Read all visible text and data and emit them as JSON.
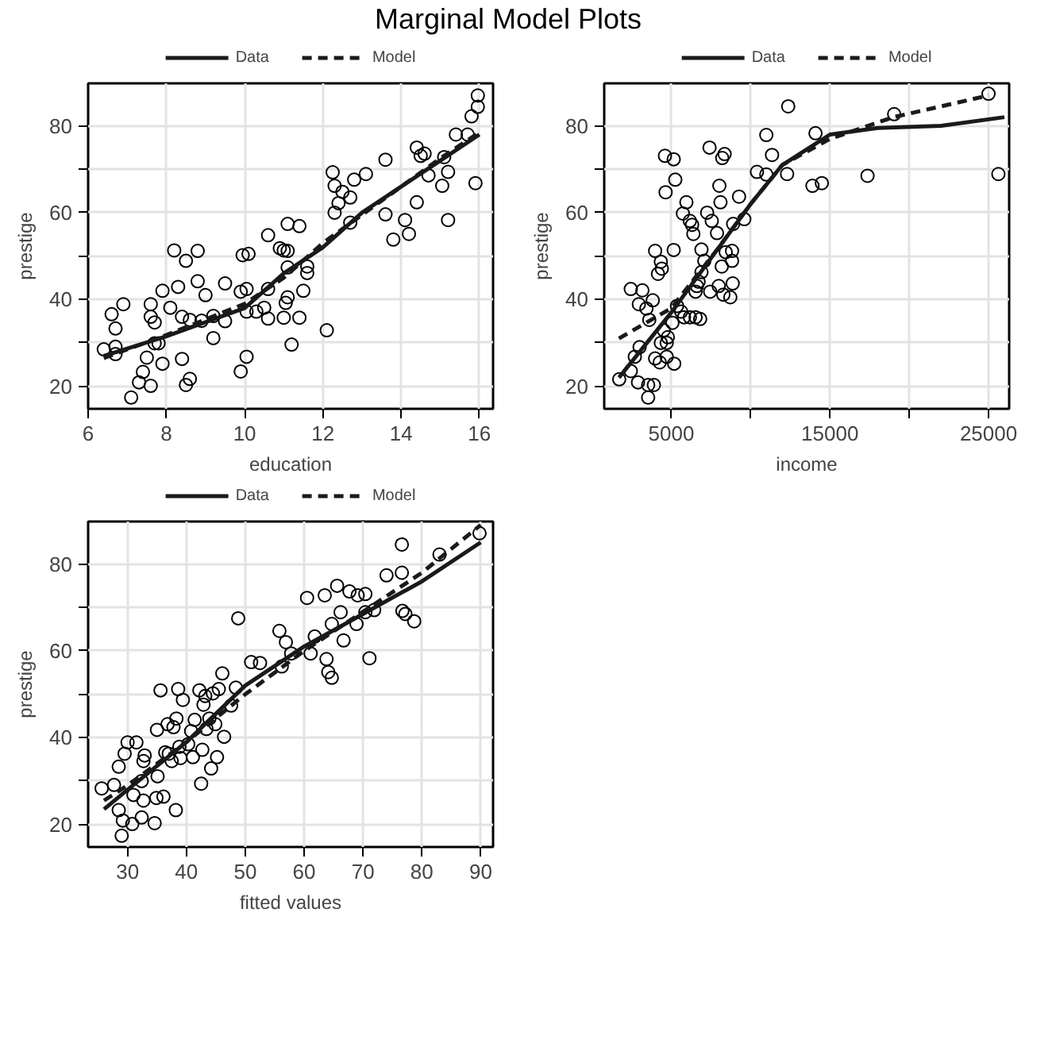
{
  "chart_data": [
    {
      "type": "scatter",
      "title": "Marginal Model Plots",
      "xlabel": "education",
      "ylabel": "prestige",
      "xlim": [
        6,
        16.35
      ],
      "ylim": [
        14.8,
        89.8
      ],
      "xticks": [
        6,
        8,
        10,
        12,
        14,
        16
      ],
      "yticks": [
        20,
        {
          "value": 30,
          "label": null
        },
        40,
        {
          "value": 50,
          "label": null
        },
        60,
        {
          "value": 70,
          "label": null
        },
        80
      ],
      "grid": true,
      "legend": "top",
      "series": [
        {
          "type": "scatter",
          "marker": "circle",
          "color": "#000000",
          "x": [
            6.4,
            6.6,
            6.7,
            6.7,
            6.7,
            6.9,
            7.1,
            7.3,
            7.4,
            7.5,
            7.6,
            7.6,
            7.6,
            7.7,
            7.7,
            7.8,
            7.9,
            7.9,
            8.1,
            8.2,
            8.3,
            8.4,
            8.4,
            8.5,
            8.5,
            8.6,
            8.6,
            8.8,
            8.8,
            8.9,
            9.0,
            9.2,
            9.2,
            9.5,
            9.5,
            9.9,
            9.9,
            9.95,
            10.05,
            10.05,
            10.05,
            10.1,
            10.3,
            10.5,
            10.6,
            10.6,
            10.6,
            10.9,
            11.0,
            11.1,
            11.1,
            11.1,
            11.05,
            11.1,
            11.0,
            11.2,
            11.4,
            11.4,
            11.5,
            11.6,
            11.6,
            12.1,
            12.25,
            12.3,
            12.3,
            12.4,
            12.5,
            12.7,
            12.8,
            12.7,
            13.1,
            13.6,
            13.6,
            13.8,
            14.1,
            14.2,
            14.4,
            14.4,
            14.5,
            14.6,
            14.7,
            15.05,
            15.1,
            15.2,
            15.2,
            15.4,
            15.7,
            15.8,
            15.96,
            15.96,
            15.9
          ],
          "values": [
            28.5,
            36.6,
            33.3,
            29.1,
            27.4,
            38.9,
            17.4,
            20.9,
            23.3,
            26.6,
            20.1,
            38.9,
            36.0,
            34.7,
            29.9,
            29.9,
            25.2,
            42.0,
            38.1,
            51.3,
            42.9,
            26.3,
            36.0,
            48.9,
            20.3,
            21.7,
            35.3,
            51.2,
            44.2,
            35.1,
            41.0,
            31.1,
            36.2,
            43.7,
            35.0,
            41.8,
            23.4,
            50.2,
            26.8,
            42.4,
            37.2,
            50.5,
            37.2,
            38.1,
            54.8,
            42.4,
            35.6,
            51.8,
            51.3,
            57.4,
            47.4,
            51.2,
            39.2,
            40.5,
            35.8,
            29.6,
            56.9,
            35.8,
            42.0,
            47.6,
            46.1,
            32.9,
            69.3,
            66.2,
            60.0,
            62.2,
            64.8,
            63.5,
            67.6,
            57.7,
            68.9,
            72.2,
            59.6,
            53.8,
            58.3,
            55.1,
            75.0,
            62.4,
            73.1,
            73.6,
            68.6,
            66.2,
            72.8,
            69.4,
            58.3,
            78.0,
            78.0,
            82.2,
            87.0,
            84.4,
            66.8
          ]
        },
        {
          "type": "line",
          "name": "Data",
          "line_style": "solid",
          "color": "#1a1a1a",
          "x": [
            6.4,
            8,
            10,
            11,
            12,
            13,
            14,
            15,
            16
          ],
          "values": [
            27,
            31.5,
            38,
            46,
            52,
            60,
            66,
            72,
            78
          ]
        },
        {
          "type": "line",
          "name": "Model",
          "line_style": "dashed",
          "color": "#1a1a1a",
          "x": [
            6.4,
            8,
            10,
            11,
            12,
            13,
            14,
            15,
            16
          ],
          "values": [
            26.5,
            31.8,
            39,
            45,
            53,
            59.5,
            66,
            72.5,
            78.5
          ]
        }
      ]
    },
    {
      "type": "scatter",
      "xlabel": "income",
      "ylabel": "prestige",
      "xlim": [
        770,
        26300
      ],
      "ylim": [
        14.8,
        89.8
      ],
      "xticks": [
        5000,
        {
          "value": 10000,
          "label": null
        },
        15000,
        {
          "value": 20000,
          "label": null
        },
        25000
      ],
      "yticks": [
        20,
        {
          "value": 30,
          "label": null
        },
        40,
        {
          "value": 50,
          "label": null
        },
        60,
        {
          "value": 70,
          "label": null
        },
        80
      ],
      "grid": true,
      "legend": "top",
      "series": [
        {
          "type": "scatter",
          "marker": "circle",
          "color": "#000000",
          "x": [
            1715,
            2445,
            2700,
            3000,
            2900,
            3540,
            3540,
            3900,
            2445,
            3175,
            2955,
            3430,
            3610,
            3830,
            3980,
            4270,
            4340,
            4525,
            4710,
            4780,
            4710,
            5180,
            5070,
            3980,
            4340,
            4400,
            4160,
            4600,
            5150,
            5250,
            4640,
            5150,
            5360,
            5620,
            5800,
            6170,
            6530,
            6820,
            5950,
            5730,
            6170,
            6310,
            6390,
            6610,
            6530,
            6720,
            6900,
            7080,
            6900,
            7260,
            7410,
            7550,
            7450,
            7990,
            7880,
            8030,
            8100,
            8210,
            8360,
            8180,
            8280,
            8430,
            8830,
            8830,
            8720,
            8870,
            8900,
            9270,
            9600,
            10400,
            10990,
            10990,
            11350,
            12370,
            12300,
            14090,
            13900,
            14490,
            17370,
            19050,
            25000,
            25620
          ],
          "values": [
            21.6,
            23.5,
            26.8,
            29.0,
            20.9,
            20.3,
            17.4,
            20.3,
            42.4,
            42.1,
            38.9,
            37.9,
            35.3,
            39.8,
            26.4,
            25.5,
            30.0,
            32.9,
            30.0,
            31.3,
            26.8,
            25.2,
            34.6,
            51.2,
            48.7,
            47.1,
            45.9,
            73.1,
            72.3,
            67.6,
            64.7,
            51.4,
            38.5,
            37.2,
            35.9,
            35.9,
            35.9,
            35.5,
            62.4,
            59.8,
            58.1,
            57.2,
            55.1,
            43.1,
            41.8,
            44.1,
            46.3,
            48.9,
            51.5,
            60.0,
            75.0,
            58.1,
            41.8,
            43.1,
            55.3,
            66.2,
            62.4,
            72.6,
            73.5,
            47.6,
            41.1,
            50.9,
            51.2,
            48.9,
            40.5,
            43.7,
            57.4,
            63.7,
            58.5,
            69.4,
            77.9,
            68.8,
            73.3,
            84.5,
            68.9,
            78.3,
            66.2,
            66.8,
            68.5,
            82.7,
            87.4,
            68.9
          ]
        },
        {
          "type": "line",
          "name": "Data",
          "line_style": "solid",
          "color": "#1a1a1a",
          "x": [
            1700,
            5000,
            8000,
            10000,
            12000,
            15000,
            18000,
            22000,
            26000
          ],
          "values": [
            22,
            37,
            52,
            62,
            71,
            78,
            79.5,
            80,
            82
          ]
        },
        {
          "type": "line",
          "name": "Model",
          "line_style": "dashed",
          "color": "#1a1a1a",
          "x": [
            1700,
            5000,
            8000,
            10000,
            12000,
            15000,
            19000,
            25000
          ],
          "values": [
            31,
            38,
            52,
            62,
            71,
            77,
            82,
            87
          ]
        }
      ]
    },
    {
      "type": "scatter",
      "xlabel": "fitted values",
      "ylabel": "prestige",
      "xlim": [
        23.3,
        92.1
      ],
      "ylim": [
        14.8,
        89.8
      ],
      "xticks": [
        30,
        40,
        50,
        60,
        70,
        80,
        90
      ],
      "yticks": [
        20,
        {
          "value": 30,
          "label": null
        },
        40,
        {
          "value": 50,
          "label": null
        },
        60,
        {
          "value": 70,
          "label": null
        },
        80
      ],
      "grid": true,
      "legend": "top",
      "series": [
        {
          "type": "scatter",
          "marker": "circle",
          "color": "#000000",
          "x": [
            25.6,
            27.7,
            28.5,
            28.5,
            29.0,
            29.5,
            29.2,
            30,
            30.8,
            31.5,
            31.0,
            32.4,
            32.4,
            32.7,
            32.7,
            32.9,
            34.6,
            34.9,
            35.1,
            35.0,
            35.6,
            36.1,
            36.4,
            36.8,
            37.0,
            37.5,
            37.8,
            38.2,
            38.3,
            38.6,
            38.8,
            39.0,
            39.4,
            40.3,
            40.8,
            41.1,
            41.4,
            42.2,
            42.5,
            42.7,
            42.9,
            43.2,
            43.4,
            43.9,
            44.2,
            44.5,
            44.9,
            45.2,
            45.5,
            46.1,
            46.4,
            47.6,
            48.4,
            48.8,
            51.0,
            52.5,
            55.8,
            56.2,
            56.9,
            57.8,
            60.5,
            61.1,
            61.8,
            63.5,
            63.8,
            64.1,
            64.7,
            64.7,
            65.6,
            66.2,
            66.7,
            67.7,
            68.9,
            69.1,
            70.4,
            70.4,
            71.1,
            71.9,
            74.0,
            76.6,
            76.6,
            76.7,
            77.2,
            78.7,
            83.0,
            89.8
          ],
          "values": [
            28.3,
            29.1,
            23.3,
            33.3,
            17.4,
            36.3,
            20.9,
            38.9,
            20.1,
            38.9,
            26.8,
            21.6,
            30.0,
            34.6,
            25.5,
            35.9,
            20.3,
            26.1,
            31.1,
            41.8,
            50.9,
            26.4,
            36.6,
            43.1,
            36.3,
            34.6,
            42.4,
            23.3,
            44.4,
            51.2,
            37.9,
            35.3,
            48.7,
            38.5,
            41.5,
            35.5,
            44.1,
            50.9,
            29.4,
            37.2,
            47.6,
            49.6,
            42.0,
            44.4,
            32.9,
            50.2,
            43.1,
            35.5,
            51.2,
            54.8,
            40.2,
            47.4,
            51.5,
            67.5,
            57.4,
            57.2,
            64.6,
            56.4,
            62.0,
            59.4,
            72.2,
            59.4,
            63.3,
            72.8,
            58.1,
            55.1,
            53.8,
            66.2,
            75.0,
            68.9,
            62.4,
            73.7,
            66.2,
            72.8,
            73.1,
            68.9,
            58.3,
            69.4,
            77.4,
            84.5,
            78.0,
            69.2,
            68.5,
            66.8,
            82.2,
            87.1
          ]
        },
        {
          "type": "line",
          "name": "Data",
          "line_style": "solid",
          "color": "#1a1a1a",
          "x": [
            26,
            30,
            40,
            50,
            60,
            70,
            80,
            90
          ],
          "values": [
            23.5,
            28,
            39,
            52,
            61,
            68.5,
            76,
            85
          ]
        },
        {
          "type": "line",
          "name": "Model",
          "line_style": "dashed",
          "color": "#1a1a1a",
          "x": [
            26,
            30,
            40,
            50,
            60,
            70,
            80,
            90
          ],
          "values": [
            25.5,
            29,
            39,
            50,
            60,
            69,
            78,
            89
          ]
        }
      ]
    }
  ]
}
